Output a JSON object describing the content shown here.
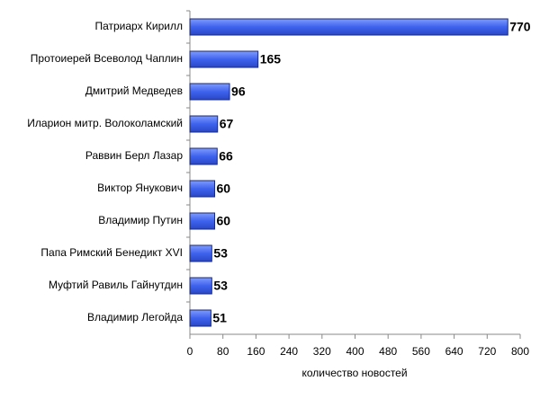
{
  "chart_data": {
    "type": "barh",
    "categories": [
      "Патриарх Кирилл",
      "Протоиерей Всеволод Чаплин",
      "Дмитрий Медведев",
      "Иларион митр. Волоколамский",
      "Раввин Берл Лазар",
      "Виктор Янукович",
      "Владимир Путин",
      "Папа Римский Бенедикт XVI",
      "Муфтий Равиль Гайнутдин",
      "Владимир Легойда"
    ],
    "values": [
      770,
      165,
      96,
      67,
      66,
      60,
      60,
      53,
      53,
      51
    ],
    "color": "#4468ee",
    "x_label": "количество новостей",
    "xlim": [
      0,
      800
    ],
    "xticks": [
      0,
      80,
      160,
      240,
      320,
      400,
      480,
      560,
      640,
      720,
      800
    ],
    "grid": false
  }
}
